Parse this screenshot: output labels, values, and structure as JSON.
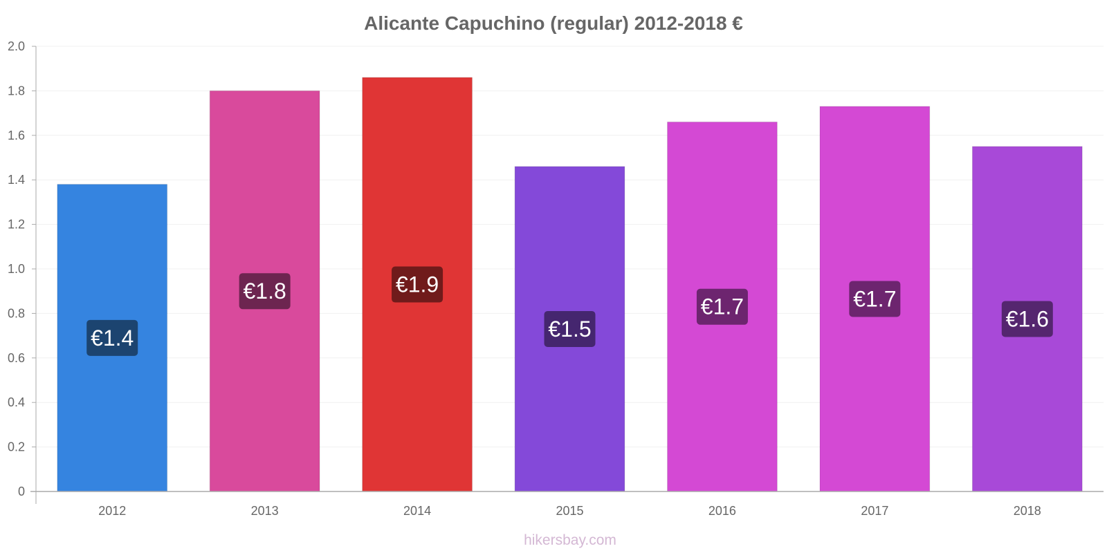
{
  "chart_data": {
    "type": "bar",
    "title": "Alicante Capuchino (regular) 2012-2018 €",
    "xlabel": "",
    "ylabel": "",
    "categories": [
      "2012",
      "2013",
      "2014",
      "2015",
      "2016",
      "2017",
      "2018"
    ],
    "values": [
      1.38,
      1.8,
      1.86,
      1.46,
      1.66,
      1.73,
      1.55
    ],
    "value_labels": [
      "€1.4",
      "€1.8",
      "€1.9",
      "€1.5",
      "€1.7",
      "€1.7",
      "€1.6"
    ],
    "ylim": [
      0,
      2.0
    ],
    "yticks": [
      "0",
      "0.2",
      "0.4",
      "0.6",
      "0.8",
      "1.0",
      "1.2",
      "1.4",
      "1.6",
      "1.8",
      "2.0"
    ],
    "grid": true,
    "legend": "none",
    "bar_colors": [
      "#3584e0",
      "#d94a9c",
      "#e03535",
      "#8449d9",
      "#d449d4",
      "#d449d4",
      "#a849d8"
    ],
    "label_bg_colors": [
      "#1c4470",
      "#6d2550",
      "#701b1b",
      "#45266f",
      "#6d256f",
      "#6d256f",
      "#55266f"
    ]
  },
  "watermark": "hikersbay.com"
}
